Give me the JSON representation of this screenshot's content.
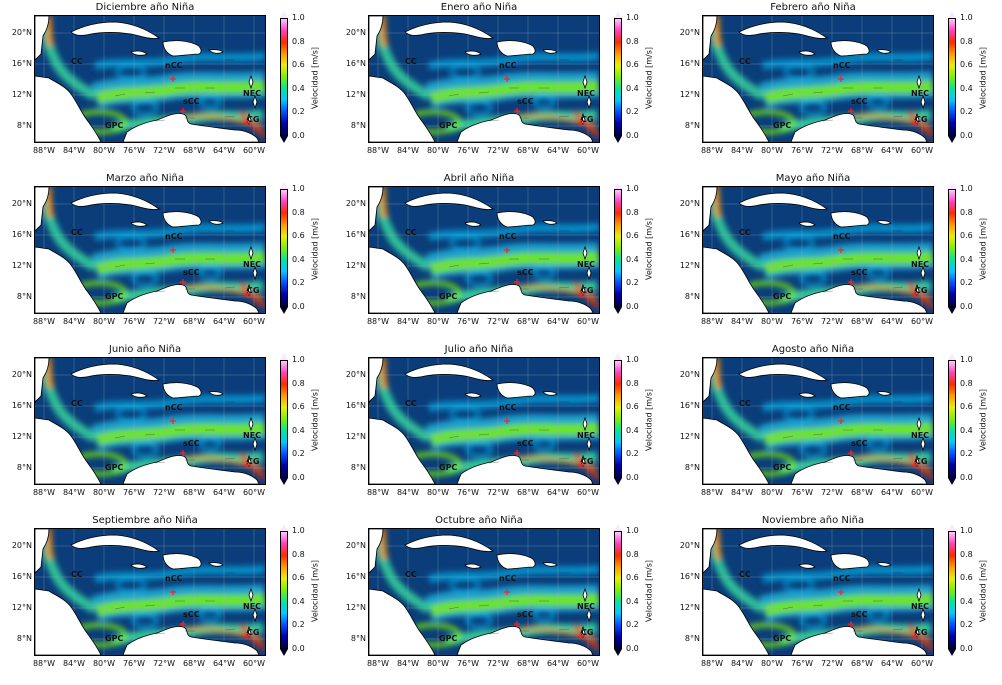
{
  "panels": [
    {
      "title": "Diciembre año Niña"
    },
    {
      "title": "Enero año Niña"
    },
    {
      "title": "Febrero año Niña"
    },
    {
      "title": "Marzo año Niña"
    },
    {
      "title": "Abril año Niña"
    },
    {
      "title": "Mayo año Niña"
    },
    {
      "title": "Junio año Niña"
    },
    {
      "title": "Julio año Niña"
    },
    {
      "title": "Agosto año Niña"
    },
    {
      "title": "Septiembre año Niña"
    },
    {
      "title": "Octubre año Niña"
    },
    {
      "title": "Noviembre año Niña"
    }
  ],
  "lat_ticks": [
    "20°N",
    "16°N",
    "12°N",
    "8°N"
  ],
  "lon_ticks": [
    "88°W",
    "84°W",
    "80°W",
    "76°W",
    "72°W",
    "68°W",
    "64°W",
    "60°W"
  ],
  "colorbar": {
    "label": "Velocidad [m/s]",
    "ticks": [
      "1.0",
      "0.8",
      "0.6",
      "0.4",
      "0.2",
      "0.0"
    ]
  },
  "current_labels": {
    "cc": "CC",
    "ncc": "nCC",
    "scc": "sCC",
    "nec": "NEC",
    "cg": "CG",
    "gpc": "GPC"
  },
  "colors": {
    "ocean_base": "#0a3d7a",
    "land": "#ffffff",
    "jet_fast": "#ff8a00",
    "jet_mid": "#7cf000",
    "jet_slow": "#00c8ff"
  }
}
